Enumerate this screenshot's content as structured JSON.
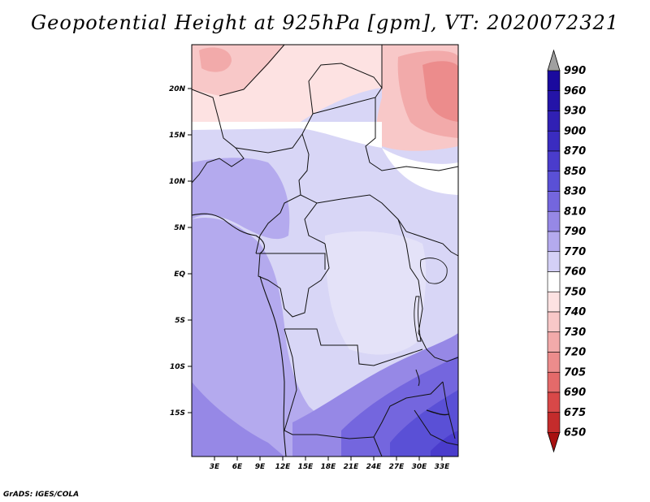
{
  "title": "Geopotential Height at 925hPa [gpm], VT: 2020072321",
  "credit": "GrADS: IGES/COLA",
  "axes": {
    "lat_labels": [
      "20N",
      "15N",
      "10N",
      "5N",
      "EQ",
      "5S",
      "10S",
      "15S"
    ],
    "lon_labels": [
      "3E",
      "6E",
      "9E",
      "12E",
      "15E",
      "18E",
      "21E",
      "24E",
      "27E",
      "30E",
      "33E"
    ]
  },
  "colorbar": {
    "levels": [
      "990",
      "960",
      "930",
      "900",
      "870",
      "850",
      "830",
      "810",
      "790",
      "770",
      "760",
      "750",
      "740",
      "730",
      "720",
      "705",
      "690",
      "675",
      "650"
    ],
    "colors": [
      "#1a0a9e",
      "#2414a8",
      "#3020b4",
      "#3a2cc0",
      "#4a3ccc",
      "#5a50d6",
      "#7466de",
      "#9688e6",
      "#b4aaee",
      "#d4d0f6",
      "#ffffff",
      "#fde2e2",
      "#f8c8c8",
      "#f2aaaa",
      "#ec8c8c",
      "#e46a6a",
      "#d84848",
      "#c42c2c",
      "#a81010"
    ]
  }
}
